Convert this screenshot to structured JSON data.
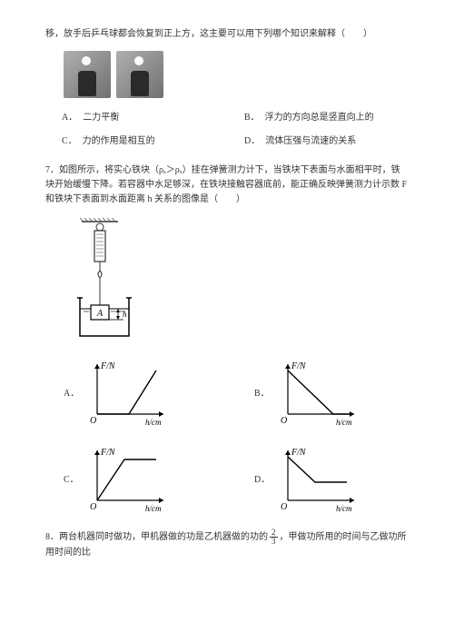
{
  "q6": {
    "stem": "移，放手后乒乓球都会恢复到正上方，这主要可以用下列哪个知识来解释（　　）",
    "options": {
      "A": "二力平衡",
      "B": "浮力的方向总是竖直向上的",
      "C": "力的作用是相互的",
      "D": "流体压强与流速的关系"
    }
  },
  "q7": {
    "stem": "7．如图所示，将实心铁块（ρₐ＞ρₓ）挂在弹簧测力计下，当铁块下表面与水面相平时，铁块开始缓慢下降。若容器中水足够深，在铁块接触容器底前，能正确反映弹簧测力计示数 F 和铁块下表面到水面距离 h 关系的图像是（　　）",
    "yLabel": "F/N",
    "xLabel": "h/cm",
    "origin": "O",
    "graphs": {
      "A": {
        "type": "line",
        "points": [
          [
            0,
            0
          ],
          [
            35,
            0
          ],
          [
            65,
            48
          ]
        ],
        "color": "#000000"
      },
      "B": {
        "type": "line",
        "points": [
          [
            0,
            48
          ],
          [
            50,
            0
          ],
          [
            68,
            0
          ]
        ],
        "color": "#000000"
      },
      "C": {
        "type": "line",
        "points": [
          [
            0,
            0
          ],
          [
            30,
            45
          ],
          [
            65,
            45
          ]
        ],
        "color": "#000000"
      },
      "D": {
        "type": "line",
        "points": [
          [
            0,
            48
          ],
          [
            30,
            20
          ],
          [
            65,
            20
          ]
        ],
        "color": "#000000"
      }
    },
    "diagram": {
      "spring_color": "#333333",
      "beaker_color": "#000000",
      "water_color": "#ffffff",
      "block_label": "A",
      "hatch_color": "#555555",
      "h_label": "h"
    }
  },
  "q8": {
    "stem_prefix": "8．两台机器同时做功，甲机器做的功是乙机器做的功的",
    "frac_num": "2",
    "frac_den": "3",
    "stem_suffix": "，甲做功所用的时间与乙做功所用时间的比"
  },
  "style": {
    "font_size": 10,
    "text_color": "#333333",
    "bg_color": "#ffffff",
    "axis_color": "#000000",
    "axis_width": 1.2
  }
}
